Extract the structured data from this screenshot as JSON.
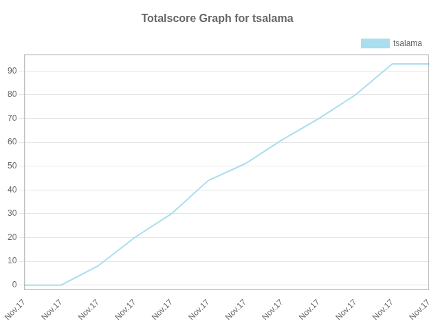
{
  "chart_data": {
    "type": "line",
    "title": "Totalscore Graph for tsalama",
    "categories": [
      "Nov.17",
      "Nov.17",
      "Nov.17",
      "Nov.17",
      "Nov.17",
      "Nov.17",
      "Nov.17",
      "Nov.17",
      "Nov.17",
      "Nov.17",
      "Nov.17",
      "Nov.17"
    ],
    "series": [
      {
        "name": "tsalama",
        "color": "#aaddee",
        "values": [
          0,
          0,
          8,
          20,
          30,
          44,
          51,
          61,
          70,
          80,
          93,
          93
        ]
      }
    ],
    "ylim": [
      -2,
      97
    ],
    "yticks": [
      0,
      10,
      20,
      30,
      40,
      50,
      60,
      70,
      80,
      90
    ],
    "grid": true,
    "legend": "upper right"
  }
}
